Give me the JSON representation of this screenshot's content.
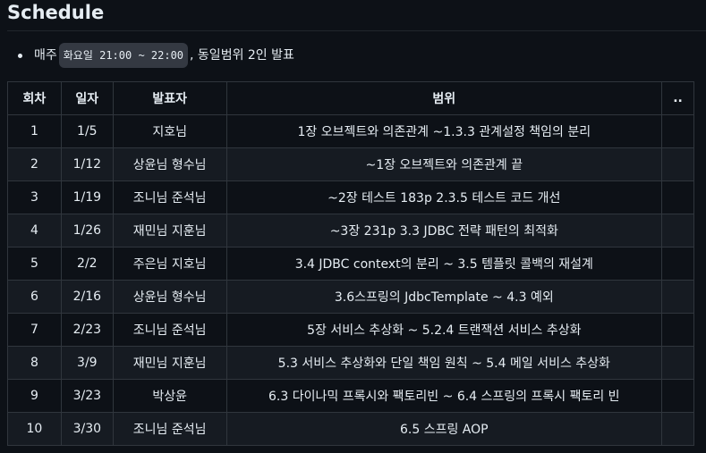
{
  "heading": "Schedule",
  "note": {
    "prefix": "매주",
    "code": "화요일 21:00 ~ 22:00",
    "suffix": ", 동일범위 2인 발표"
  },
  "table": {
    "headers": [
      "회차",
      "일자",
      "발표자",
      "범위",
      ".."
    ],
    "rows": [
      [
        "1",
        "1/5",
        "지호님",
        "1장 오브젝트와 의존관계 ~1.3.3 관계설정 책임의 분리",
        ""
      ],
      [
        "2",
        "1/12",
        "상윤님 형수님",
        "~1장 오브젝트와 의존관계 끝",
        ""
      ],
      [
        "3",
        "1/19",
        "조니님 준석님",
        "~2장 테스트 183p 2.3.5 테스트 코드 개선",
        ""
      ],
      [
        "4",
        "1/26",
        "재민님 지훈님",
        "~3장 231p 3.3 JDBC 전략 패턴의 최적화",
        ""
      ],
      [
        "5",
        "2/2",
        "주은님 지호님",
        "3.4 JDBC context의 분리 ~ 3.5 템플릿 콜백의 재설계",
        ""
      ],
      [
        "6",
        "2/16",
        "상윤님 형수님",
        "3.6스프링의 JdbcTemplate ~ 4.3 예외",
        ""
      ],
      [
        "7",
        "2/23",
        "조니님 준석님",
        "5장 서비스 추상화 ~ 5.2.4 트랜잭션 서비스 추상화",
        ""
      ],
      [
        "8",
        "3/9",
        "재민님 지훈님",
        "5.3 서비스 추상화와 단일 책임 원칙 ~ 5.4 메일 서비스 추상화",
        ""
      ],
      [
        "9",
        "3/23",
        "박상윤",
        "6.3 다이나믹 프록시와 팩토리빈 ~ 6.4 스프링의 프록시 팩토리 빈",
        ""
      ],
      [
        "10",
        "3/30",
        "조니님 준석님",
        "6.5 스프링 AOP",
        ""
      ]
    ]
  }
}
